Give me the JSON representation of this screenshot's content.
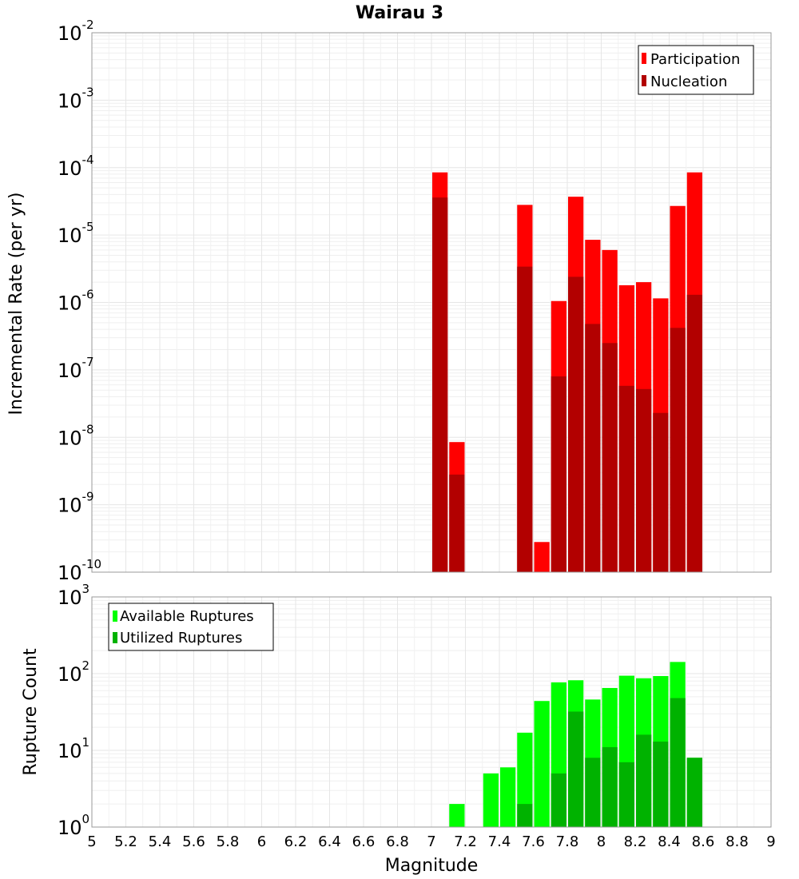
{
  "chart_data": [
    {
      "type": "bar",
      "title": "Wairau 3",
      "xlabel": "",
      "ylabel": "Incremental Rate (per yr)",
      "yscale": "log",
      "ylim_exponents": [
        -10,
        -2
      ],
      "bin_width": 0.1,
      "legend": {
        "placement": "top-right"
      },
      "series": [
        {
          "name": "Participation",
          "color": "#ff0000",
          "x": [
            7.05,
            7.15,
            7.55,
            7.65,
            7.75,
            7.85,
            7.95,
            8.05,
            8.15,
            8.25,
            8.35,
            8.45,
            8.55
          ],
          "values": [
            8.5e-05,
            8.5e-09,
            2.8e-05,
            2.8e-10,
            1.05e-06,
            3.7e-05,
            8.5e-06,
            6e-06,
            1.8e-06,
            2e-06,
            1.15e-06,
            2.7e-05,
            8.5e-05
          ]
        },
        {
          "name": "Nucleation",
          "color": "#b20000",
          "x": [
            7.05,
            7.15,
            7.55,
            7.65,
            7.75,
            7.85,
            7.95,
            8.05,
            8.15,
            8.25,
            8.35,
            8.45,
            8.55
          ],
          "values": [
            3.6e-05,
            2.8e-09,
            3.4e-06,
            1e-10,
            8e-08,
            2.4e-06,
            4.8e-07,
            2.5e-07,
            5.8e-08,
            5.2e-08,
            2.3e-08,
            4.2e-07,
            1.3e-06
          ]
        }
      ]
    },
    {
      "type": "bar",
      "title": "",
      "xlabel": "Magnitude",
      "ylabel": "Rupture Count",
      "yscale": "log",
      "ylim_exponents": [
        0,
        3
      ],
      "xlim": [
        5,
        9
      ],
      "xticks": [
        "5",
        "5.2",
        "5.4",
        "5.6",
        "5.8",
        "6",
        "6.2",
        "6.4",
        "6.6",
        "6.8",
        "7",
        "7.2",
        "7.4",
        "7.6",
        "7.8",
        "8",
        "8.2",
        "8.4",
        "8.6",
        "8.8",
        "9"
      ],
      "bin_width": 0.1,
      "legend": {
        "placement": "top-left"
      },
      "series": [
        {
          "name": "Available Ruptures",
          "color": "#00ff00",
          "x": [
            6.65,
            7.05,
            7.15,
            7.25,
            7.35,
            7.45,
            7.55,
            7.65,
            7.75,
            7.85,
            7.95,
            8.05,
            8.15,
            8.25,
            8.35,
            8.45,
            8.55
          ],
          "values": [
            1,
            1,
            2,
            1,
            5,
            6,
            17,
            44,
            77,
            82,
            46,
            65,
            94,
            87,
            93,
            142,
            8
          ]
        },
        {
          "name": "Utilized Ruptures",
          "color": "#00b200",
          "x": [
            6.65,
            7.05,
            7.15,
            7.25,
            7.35,
            7.45,
            7.55,
            7.65,
            7.75,
            7.85,
            7.95,
            8.05,
            8.15,
            8.25,
            8.35,
            8.45,
            8.55
          ],
          "values": [
            0,
            1,
            1,
            0,
            0,
            0,
            2,
            1,
            5,
            32,
            8,
            11,
            7,
            16,
            13,
            48,
            8
          ]
        }
      ]
    }
  ],
  "x_tick_labels": [
    "5",
    "5.2",
    "5.4",
    "5.6",
    "5.8",
    "6",
    "6.2",
    "6.4",
    "6.6",
    "6.8",
    "7",
    "7.2",
    "7.4",
    "7.6",
    "7.8",
    "8",
    "8.2",
    "8.4",
    "8.6",
    "8.8",
    "9"
  ],
  "top_y_ticks": {
    "base": "10",
    "exponents": [
      "-2",
      "-3",
      "-4",
      "-5",
      "-6",
      "-7",
      "-8",
      "-9",
      "-10"
    ]
  },
  "bottom_y_ticks": {
    "base": "10",
    "exponents": [
      "3",
      "2",
      "1",
      "0"
    ]
  }
}
